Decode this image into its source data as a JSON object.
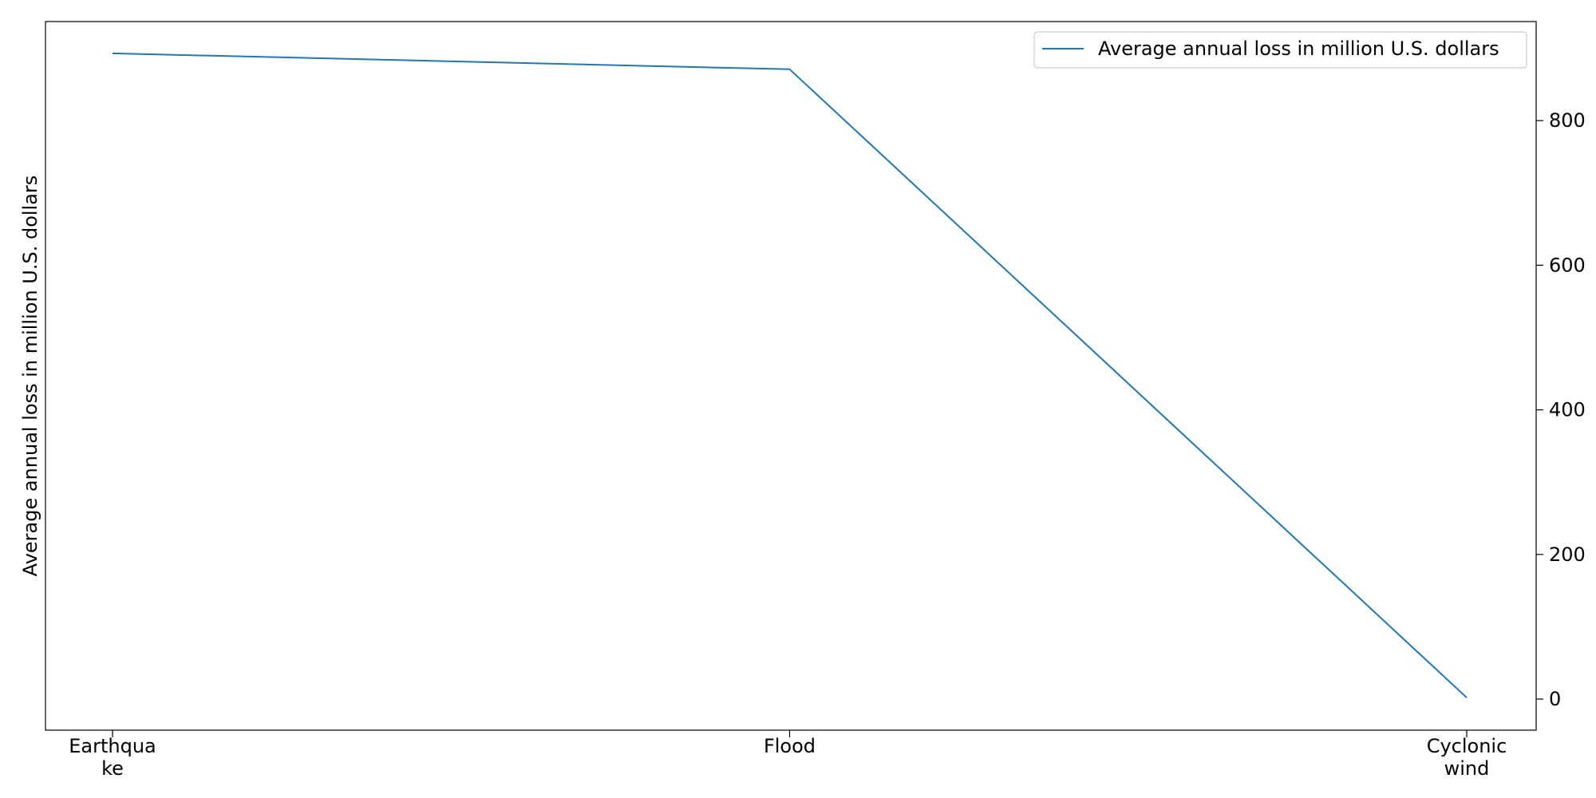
{
  "chart_data": {
    "type": "line",
    "categories": [
      "Earthquake",
      "Flood",
      "Cyclonic wind"
    ],
    "category_labels": [
      [
        "Earthqua",
        "ke"
      ],
      [
        "Flood"
      ],
      [
        "Cyclonic",
        "wind"
      ]
    ],
    "series": [
      {
        "name": "Average annual loss in million U.S. dollars",
        "values": [
          893,
          871,
          2
        ],
        "color": "#1f77b4"
      }
    ],
    "ylabel": "Average annual loss in million U.S. dollars",
    "y_axis_side": "right",
    "ylim": [
      -43,
      937
    ],
    "yticks": [
      0,
      200,
      400,
      600,
      800
    ],
    "ytick_labels": [
      "0",
      "200",
      "400",
      "600",
      "800"
    ],
    "legend_position": "top-right",
    "grid": false
  }
}
